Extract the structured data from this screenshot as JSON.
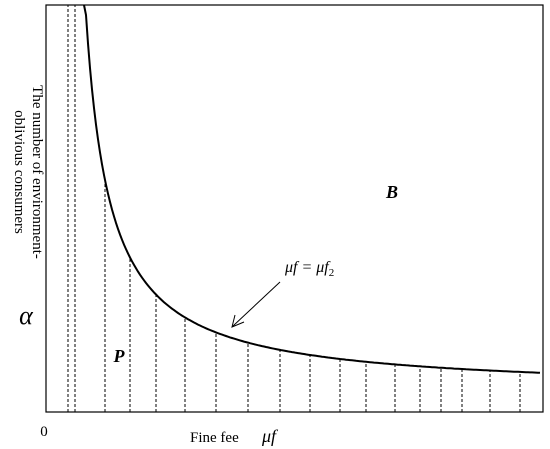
{
  "y_axis": {
    "label_lines": [
      "The number of environment-",
      "oblivious consumers"
    ],
    "symbol": "α"
  },
  "x_axis": {
    "origin": "0",
    "label": "Fine fee",
    "symbol": "μf"
  },
  "regions": {
    "upper": "B",
    "lower": "P"
  },
  "curve_label": {
    "main": "μf = μf",
    "subscript": "2"
  }
}
